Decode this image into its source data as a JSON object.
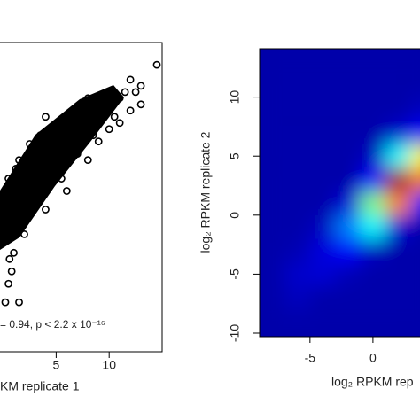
{
  "chart_data": [
    {
      "type": "scatter",
      "xlabel": "KM replicate 1",
      "annotation": "= 0.94, p < 2.2 x 10⁻¹⁶",
      "xlim": [
        -0.3,
        15
      ],
      "ylim": [
        -10,
        15
      ],
      "xticks": [
        5,
        10
      ],
      "color": "#000000",
      "x": [
        14.5,
        12,
        11.5,
        13,
        10,
        9,
        8,
        7,
        6,
        3.5,
        4,
        5,
        2.5,
        1.5,
        0.5,
        1,
        0.5,
        8,
        10,
        12,
        11,
        9,
        13,
        6,
        4,
        2,
        1,
        0.5,
        0.2,
        0.8,
        1.5,
        7,
        5.5,
        3,
        2,
        9.5,
        11,
        12.5,
        6,
        4.5,
        3,
        0.3,
        1.2,
        2.5,
        0.6,
        10.5,
        8.5,
        7.5,
        5,
        3.5
      ],
      "y": [
        13.2,
        12,
        11,
        11.5,
        11,
        10,
        10.5,
        8.5,
        9,
        7.5,
        9,
        6,
        6.8,
        5.5,
        4,
        2,
        3,
        5.5,
        8,
        9.5,
        8.5,
        7,
        10,
        3,
        1.5,
        -0.5,
        -2,
        -4.5,
        -6,
        -3.5,
        -6,
        6,
        4,
        3,
        1,
        9.5,
        10.5,
        11,
        7,
        5,
        4.5,
        1,
        4.8,
        2,
        -2.5,
        9,
        7.5,
        7,
        5,
        2.5
      ]
    },
    {
      "type": "heatmap",
      "ylabel": "log₂ RPKM replicate 2",
      "xlabel": "log₂ RPKM rep",
      "xlim": [
        -9,
        10
      ],
      "ylim": [
        -10.3,
        14.1
      ],
      "xticks": [
        -5,
        0
      ],
      "yticks": [
        -10,
        -5,
        0,
        5,
        10
      ],
      "x_edges": [
        -9,
        -7,
        -5,
        -3,
        -1,
        1,
        3,
        5
      ],
      "y_edges": [
        -10,
        -8,
        -6,
        -4,
        -2,
        0,
        2,
        4,
        6,
        8,
        10,
        12,
        14
      ],
      "colorscale": [
        "#0000aa",
        "#0000ff",
        "#00ffff",
        "#ffff00",
        "#ff0000",
        "#800000"
      ],
      "z": [
        [
          0,
          0,
          0,
          0,
          0,
          0,
          0
        ],
        [
          0,
          0.05,
          0,
          0,
          0,
          0,
          0
        ],
        [
          0,
          0.08,
          0.1,
          0.03,
          0,
          0,
          0
        ],
        [
          0,
          0.02,
          0.12,
          0.2,
          0.05,
          0,
          0
        ],
        [
          0,
          0,
          0.05,
          0.3,
          0.4,
          0.1,
          0
        ],
        [
          0,
          0,
          0,
          0.1,
          0.5,
          0.7,
          0.2
        ],
        [
          0,
          0,
          0,
          0,
          0.2,
          0.95,
          0.7
        ],
        [
          0,
          0,
          0,
          0,
          0.05,
          0.4,
          0.6
        ],
        [
          0,
          0,
          0,
          0,
          0,
          0.08,
          0.2
        ],
        [
          0,
          0,
          0,
          0,
          0,
          0,
          0.05
        ],
        [
          0,
          0,
          0,
          0,
          0,
          0,
          0
        ],
        [
          0,
          0,
          0,
          0,
          0,
          0,
          0
        ]
      ]
    }
  ]
}
